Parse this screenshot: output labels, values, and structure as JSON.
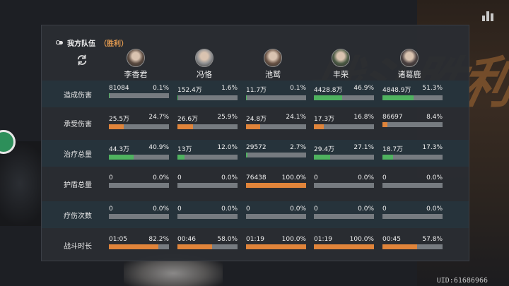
{
  "background_text": "战斗胜利",
  "uid": "UID:61686966",
  "panel": {
    "title": "我方队伍",
    "result": "（胜利）"
  },
  "characters": [
    {
      "name": "李香君",
      "avatar_color": "#5a4a40"
    },
    {
      "name": "冯恪",
      "avatar_color": "#8f9092"
    },
    {
      "name": "池鹫",
      "avatar_color": "#6a5446"
    },
    {
      "name": "丰荣",
      "avatar_color": "#4b5a44"
    },
    {
      "name": "诸葛鹿",
      "avatar_color": "#4a4040"
    }
  ],
  "colors": {
    "damage": "#4fb25f",
    "taken": "#e0843a",
    "heal": "#4fb25f",
    "shield": "#e0843a",
    "revive": "#e0843a",
    "time": "#e0843a"
  },
  "rows": [
    {
      "label": "造成伤害",
      "kind": "damage",
      "cells": [
        {
          "value": "81084",
          "pct": "0.1%",
          "fill": 0.001
        },
        {
          "value": "152.4万",
          "pct": "1.6%",
          "fill": 0.016
        },
        {
          "value": "11.7万",
          "pct": "0.1%",
          "fill": 0.001
        },
        {
          "value": "4428.8万",
          "pct": "46.9%",
          "fill": 0.469
        },
        {
          "value": "4848.9万",
          "pct": "51.3%",
          "fill": 0.513
        }
      ]
    },
    {
      "label": "承受伤害",
      "kind": "taken",
      "cells": [
        {
          "value": "25.5万",
          "pct": "24.7%",
          "fill": 0.247
        },
        {
          "value": "26.6万",
          "pct": "25.9%",
          "fill": 0.259
        },
        {
          "value": "24.8万",
          "pct": "24.1%",
          "fill": 0.241
        },
        {
          "value": "17.3万",
          "pct": "16.8%",
          "fill": 0.168
        },
        {
          "value": "86697",
          "pct": "8.4%",
          "fill": 0.084
        }
      ]
    },
    {
      "label": "治疗总量",
      "kind": "heal",
      "cells": [
        {
          "value": "44.3万",
          "pct": "40.9%",
          "fill": 0.409
        },
        {
          "value": "13万",
          "pct": "12.0%",
          "fill": 0.12
        },
        {
          "value": "29572",
          "pct": "2.7%",
          "fill": 0.027
        },
        {
          "value": "29.4万",
          "pct": "27.1%",
          "fill": 0.271
        },
        {
          "value": "18.7万",
          "pct": "17.3%",
          "fill": 0.173
        }
      ]
    },
    {
      "label": "护盾总量",
      "kind": "shield",
      "cells": [
        {
          "value": "0",
          "pct": "0.0%",
          "fill": 0
        },
        {
          "value": "0",
          "pct": "0.0%",
          "fill": 0
        },
        {
          "value": "76438",
          "pct": "100.0%",
          "fill": 1
        },
        {
          "value": "0",
          "pct": "0.0%",
          "fill": 0
        },
        {
          "value": "0",
          "pct": "0.0%",
          "fill": 0
        }
      ]
    },
    {
      "label": "疗伤次数",
      "kind": "revive",
      "cells": [
        {
          "value": "0",
          "pct": "0.0%",
          "fill": 0
        },
        {
          "value": "0",
          "pct": "0.0%",
          "fill": 0
        },
        {
          "value": "0",
          "pct": "0.0%",
          "fill": 0
        },
        {
          "value": "0",
          "pct": "0.0%",
          "fill": 0
        },
        {
          "value": "0",
          "pct": "0.0%",
          "fill": 0
        }
      ]
    },
    {
      "label": "战斗时长",
      "kind": "time",
      "cells": [
        {
          "value": "01:05",
          "pct": "82.2%",
          "fill": 0.822
        },
        {
          "value": "00:46",
          "pct": "58.0%",
          "fill": 0.58
        },
        {
          "value": "01:19",
          "pct": "100.0%",
          "fill": 1
        },
        {
          "value": "01:19",
          "pct": "100.0%",
          "fill": 1
        },
        {
          "value": "00:45",
          "pct": "57.8%",
          "fill": 0.578
        }
      ]
    }
  ]
}
